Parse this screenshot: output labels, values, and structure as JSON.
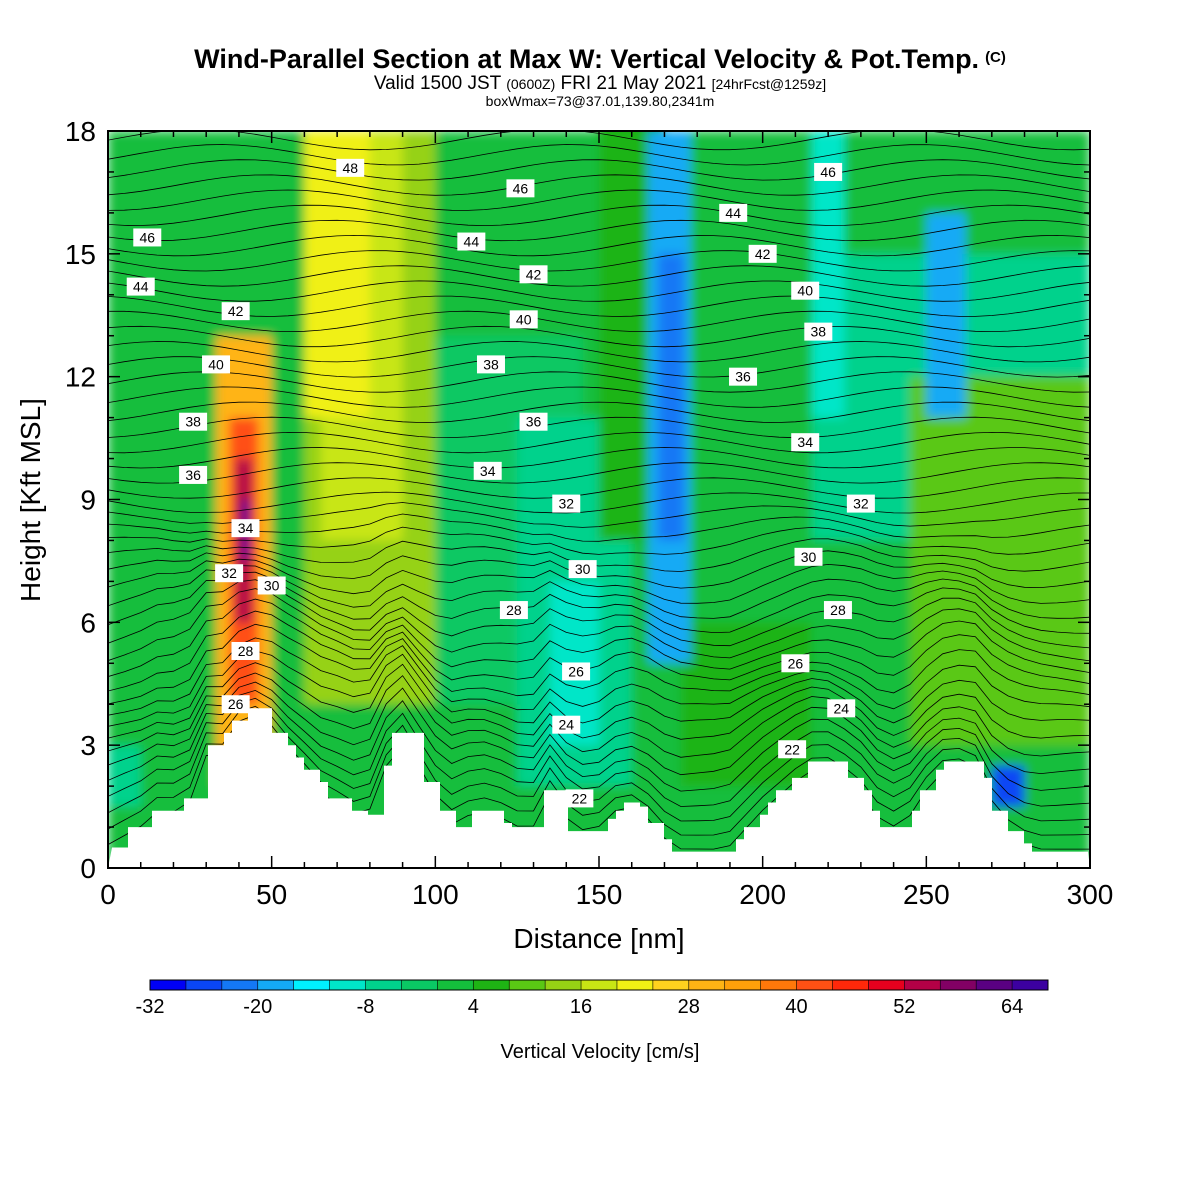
{
  "header": {
    "title": "Wind-Parallel Section at Max W: Vertical Velocity & Pot.Temp.",
    "title_mark": "(C)",
    "valid_prefix": "Valid 1500 JST",
    "valid_zulu": "(0600Z)",
    "valid_date": "FRI 21 May 2021",
    "forecast": "[24hrFcst@1259z]",
    "boxmax": "boxWmax=73@37.01,139.80,2341m"
  },
  "chart_data": {
    "type": "heatmap",
    "xlabel": "Distance [nm]",
    "ylabel": "Height [Kft MSL]",
    "xlim": [
      0,
      300
    ],
    "ylim": [
      0,
      18
    ],
    "x_ticks": [
      0,
      50,
      100,
      150,
      200,
      250,
      300
    ],
    "y_ticks": [
      0,
      3,
      6,
      9,
      12,
      15,
      18
    ],
    "colorbar": {
      "title": "Vertical Velocity [cm/s]",
      "min": -32,
      "max": 68,
      "step": 4,
      "tick_labels": [
        "-32",
        "-20",
        "-8",
        "4",
        "16",
        "28",
        "40",
        "52",
        "64"
      ],
      "tick_values": [
        -32,
        -20,
        -8,
        4,
        16,
        28,
        40,
        52,
        64
      ],
      "colors": [
        "#0000f5",
        "#0a46f5",
        "#1478f5",
        "#14aaf5",
        "#00f0ff",
        "#00e6c8",
        "#00d28c",
        "#0ac864",
        "#14be3c",
        "#1eb414",
        "#5ac814",
        "#96d214",
        "#c8e614",
        "#f0f014",
        "#ffd21e",
        "#ffb414",
        "#ffa00a",
        "#ff780a",
        "#ff5014",
        "#ff280a",
        "#e6001e",
        "#b40046",
        "#820064",
        "#5a0082",
        "#3c00a0"
      ]
    },
    "contour_labels": [
      {
        "v": "48",
        "x": 74,
        "y": 17.1
      },
      {
        "v": "46",
        "x": 12,
        "y": 15.4
      },
      {
        "v": "44",
        "x": 10,
        "y": 14.2
      },
      {
        "v": "42",
        "x": 39,
        "y": 13.6
      },
      {
        "v": "40",
        "x": 33,
        "y": 12.3
      },
      {
        "v": "38",
        "x": 26,
        "y": 10.9
      },
      {
        "v": "36",
        "x": 26,
        "y": 9.6
      },
      {
        "v": "34",
        "x": 42,
        "y": 8.3
      },
      {
        "v": "32",
        "x": 37,
        "y": 7.2
      },
      {
        "v": "30",
        "x": 50,
        "y": 6.9
      },
      {
        "v": "28",
        "x": 42,
        "y": 5.3
      },
      {
        "v": "26",
        "x": 39,
        "y": 4.0
      },
      {
        "v": "46",
        "x": 126,
        "y": 16.6
      },
      {
        "v": "44",
        "x": 111,
        "y": 15.3
      },
      {
        "v": "42",
        "x": 130,
        "y": 14.5
      },
      {
        "v": "40",
        "x": 127,
        "y": 13.4
      },
      {
        "v": "38",
        "x": 117,
        "y": 12.3
      },
      {
        "v": "36",
        "x": 130,
        "y": 10.9
      },
      {
        "v": "34",
        "x": 116,
        "y": 9.7
      },
      {
        "v": "32",
        "x": 140,
        "y": 8.9
      },
      {
        "v": "30",
        "x": 145,
        "y": 7.3
      },
      {
        "v": "28",
        "x": 124,
        "y": 6.3
      },
      {
        "v": "26",
        "x": 143,
        "y": 4.8
      },
      {
        "v": "24",
        "x": 140,
        "y": 3.5
      },
      {
        "v": "22",
        "x": 144,
        "y": 1.7
      },
      {
        "v": "46",
        "x": 220,
        "y": 17.0
      },
      {
        "v": "44",
        "x": 191,
        "y": 16.0
      },
      {
        "v": "42",
        "x": 200,
        "y": 15.0
      },
      {
        "v": "40",
        "x": 213,
        "y": 14.1
      },
      {
        "v": "38",
        "x": 217,
        "y": 13.1
      },
      {
        "v": "36",
        "x": 194,
        "y": 12.0
      },
      {
        "v": "34",
        "x": 213,
        "y": 10.4
      },
      {
        "v": "32",
        "x": 230,
        "y": 8.9
      },
      {
        "v": "30",
        "x": 214,
        "y": 7.6
      },
      {
        "v": "28",
        "x": 223,
        "y": 6.3
      },
      {
        "v": "26",
        "x": 210,
        "y": 5.0
      },
      {
        "v": "24",
        "x": 224,
        "y": 3.9
      },
      {
        "v": "22",
        "x": 209,
        "y": 2.9
      }
    ]
  }
}
